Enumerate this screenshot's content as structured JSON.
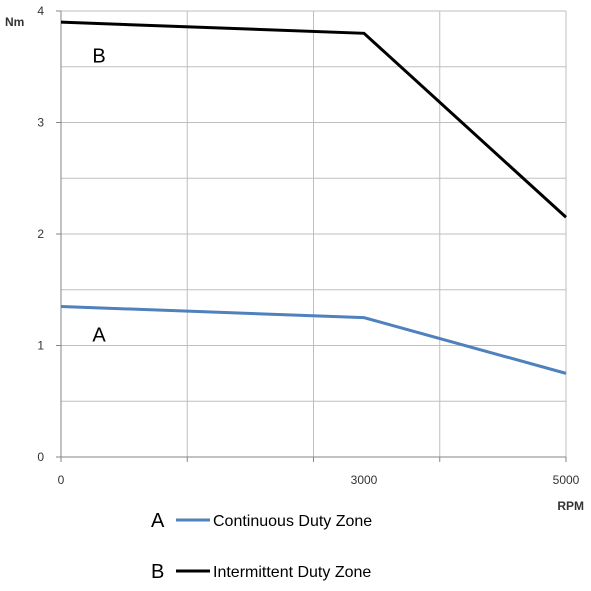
{
  "chart_data": {
    "type": "line",
    "title": "",
    "xlabel": "RPM",
    "ylabel": "Nm",
    "xlim": [
      0,
      5000
    ],
    "ylim": [
      0,
      4
    ],
    "xticks": [
      0,
      3000,
      5000
    ],
    "yticks": [
      0,
      1,
      2,
      3,
      4
    ],
    "x_tick_labels": [
      "0",
      "3000",
      "5000"
    ],
    "y_tick_labels": [
      "0",
      "1",
      "2",
      "3",
      "4"
    ],
    "grid": true,
    "series": [
      {
        "id": "A",
        "letter": "A",
        "name": "Continuous Duty Zone",
        "color": "#4F81BD",
        "x": [
          0,
          3000,
          5000
        ],
        "y": [
          1.35,
          1.25,
          0.75
        ],
        "label_at": [
          350,
          1.1
        ]
      },
      {
        "id": "B",
        "letter": "B",
        "name": "Intermittent Duty Zone",
        "color": "#000000",
        "x": [
          0,
          3000,
          5000
        ],
        "y": [
          3.9,
          3.8,
          2.15
        ],
        "label_at": [
          350,
          3.6
        ]
      }
    ],
    "legend_position": "bottom-left"
  }
}
